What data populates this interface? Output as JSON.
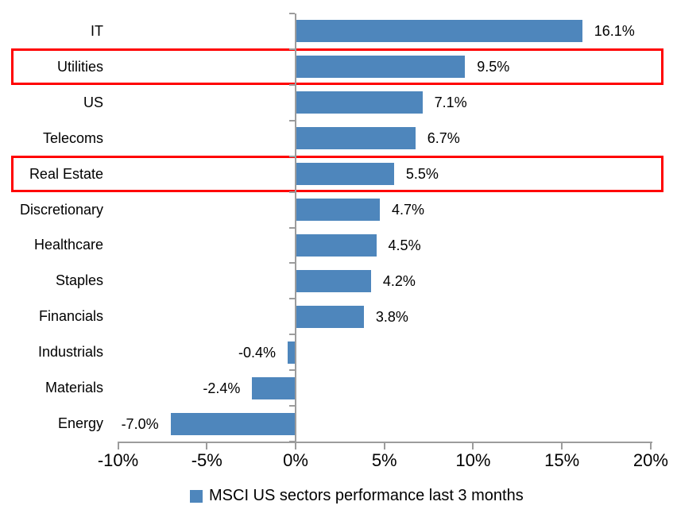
{
  "chart_data": {
    "type": "bar",
    "orientation": "horizontal",
    "title": "",
    "categories": [
      "IT",
      "Utilities",
      "US",
      "Telecoms",
      "Real Estate",
      "Discretionary",
      "Healthcare",
      "Staples",
      "Financials",
      "Industrials",
      "Materials",
      "Energy"
    ],
    "values": [
      16.1,
      9.5,
      7.1,
      6.7,
      5.5,
      4.7,
      4.5,
      4.2,
      3.8,
      -0.4,
      -2.4,
      -7.0
    ],
    "data_labels": [
      "16.1%",
      "9.5%",
      "7.1%",
      "6.7%",
      "5.5%",
      "4.7%",
      "4.5%",
      "4.2%",
      "3.8%",
      "-0.4%",
      "-2.4%",
      "-7.0%"
    ],
    "highlighted_categories": [
      "Utilities",
      "Real Estate"
    ],
    "x_tick_labels": [
      "-10%",
      "-5%",
      "0%",
      "5%",
      "10%",
      "15%",
      "20%"
    ],
    "x_tick_values": [
      -10,
      -5,
      0,
      5,
      10,
      15,
      20
    ],
    "xlim": [
      -10,
      20
    ],
    "grid": false,
    "legend_position": "bottom",
    "legend": [
      {
        "label": "MSCI US sectors performance last 3 months",
        "color": "#4E86BC"
      }
    ],
    "colors": {
      "bar": "#4E86BC",
      "highlight_border": "#FF0000",
      "axis": "#9C9C9C",
      "text": "#000000"
    }
  }
}
